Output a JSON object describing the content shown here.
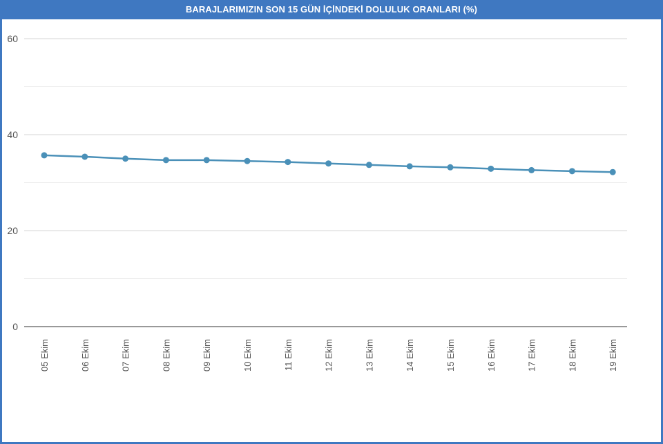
{
  "chart_data": {
    "type": "line",
    "title": "BARAJLARIMIZIN SON 15 GÜN İÇİNDEKİ DOLULUK ORANLARI (%)",
    "categories": [
      "05 Ekim",
      "06 Ekim",
      "07 Ekim",
      "08 Ekim",
      "09 Ekim",
      "10 Ekim",
      "11 Ekim",
      "12 Ekim",
      "13 Ekim",
      "14 Ekim",
      "15 Ekim",
      "16 Ekim",
      "17 Ekim",
      "18 Ekim",
      "19 Ekim"
    ],
    "series": [
      {
        "values": [
          35.7,
          35.4,
          35.0,
          34.7,
          34.7,
          34.5,
          34.3,
          34.0,
          33.7,
          33.4,
          33.2,
          32.9,
          32.6,
          32.4,
          32.2
        ]
      }
    ],
    "ylim": [
      0,
      60
    ],
    "yticks": [
      0,
      20,
      40,
      60
    ],
    "grid": true,
    "line_color": "#4a90b8",
    "title_bar_color": "#3f78c1"
  }
}
